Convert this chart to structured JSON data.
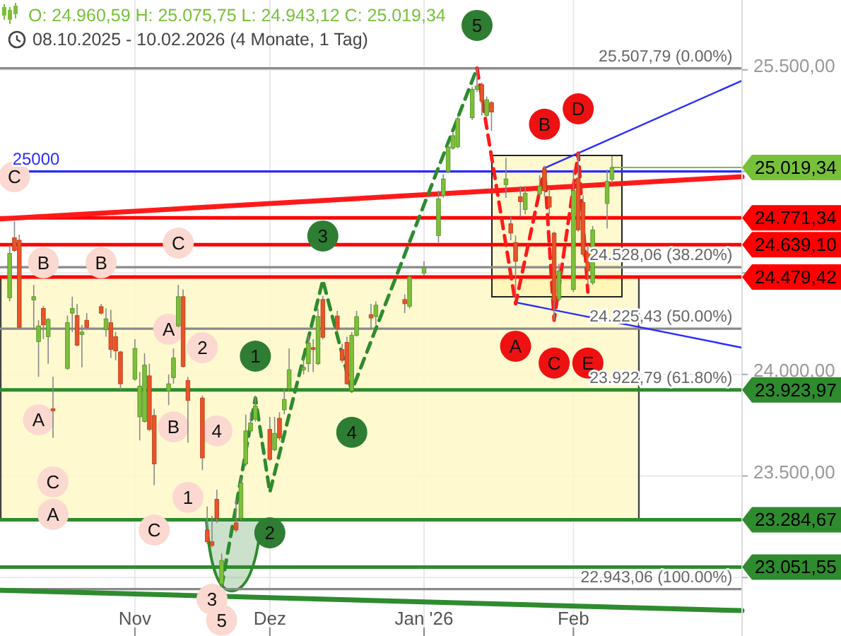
{
  "chart_data": {
    "type": "candlestick",
    "title": "O: 24.960,59  H: 25.075,75  L: 24.943,12  C: 25.019,34",
    "subtitle": "08.10.2025 - 10.02.2026  (4 Monate, 1 Tag)",
    "x": [
      "2025-10-08",
      "2025-10-09",
      "2025-10-10",
      "2025-10-13",
      "2025-10-14",
      "2025-10-15",
      "2025-10-16",
      "2025-10-17",
      "2025-10-20",
      "2025-10-21",
      "2025-10-22",
      "2025-10-23",
      "2025-10-24",
      "2025-10-27",
      "2025-10-28",
      "2025-10-29",
      "2025-10-30",
      "2025-10-31",
      "2025-11-03",
      "2025-11-04",
      "2025-11-05",
      "2025-11-06",
      "2025-11-07",
      "2025-11-10",
      "2025-11-11",
      "2025-11-12",
      "2025-11-13",
      "2025-11-14",
      "2025-11-17",
      "2025-11-18",
      "2025-11-19",
      "2025-11-20",
      "2025-11-21",
      "2025-11-24",
      "2025-11-25",
      "2025-11-26",
      "2025-11-27",
      "2025-11-28",
      "2025-12-01",
      "2025-12-02",
      "2025-12-03",
      "2025-12-04",
      "2025-12-05",
      "2025-12-08",
      "2025-12-09",
      "2025-12-10",
      "2025-12-11",
      "2025-12-12",
      "2025-12-15",
      "2025-12-16",
      "2025-12-17",
      "2025-12-18",
      "2025-12-19",
      "2025-12-22",
      "2025-12-23",
      "2025-12-29",
      "2025-12-30",
      "2026-01-02",
      "2026-01-05",
      "2026-01-06",
      "2026-01-07",
      "2026-01-08",
      "2026-01-09",
      "2026-01-12",
      "2026-01-13",
      "2026-01-14",
      "2026-01-15",
      "2026-01-16",
      "2026-01-19",
      "2026-01-20",
      "2026-01-21",
      "2026-01-22",
      "2026-01-23",
      "2026-01-26",
      "2026-01-27",
      "2026-01-28",
      "2026-01-29",
      "2026-01-30",
      "2026-02-02",
      "2026-02-03",
      "2026-02-04",
      "2026-02-05",
      "2026-02-06",
      "2026-02-09",
      "2026-02-10"
    ],
    "ohlc": [
      [
        24378,
        24638,
        24360,
        24596
      ],
      [
        24673,
        24754,
        24603,
        24610
      ],
      [
        24661,
        24689,
        24232,
        24232
      ],
      [
        24367,
        24441,
        24220,
        24383
      ],
      [
        24162,
        24267,
        23988,
        24239
      ],
      [
        24325,
        24336,
        24174,
        24244
      ],
      [
        24186,
        24278,
        24053,
        24271
      ],
      [
        23831,
        23988,
        23687,
        23821
      ],
      [
        24030,
        24290,
        24023,
        24255
      ],
      [
        24302,
        24383,
        24209,
        24325
      ],
      [
        24290,
        24348,
        24139,
        24144
      ],
      [
        24197,
        24244,
        24035,
        24209
      ],
      [
        24267,
        24302,
        24220,
        24232
      ],
      [
        24334,
        24348,
        24295,
        24302
      ],
      [
        24220,
        24325,
        24186,
        24274
      ],
      [
        24255,
        24318,
        24081,
        24123
      ],
      [
        24186,
        24209,
        24070,
        24116
      ],
      [
        24111,
        24116,
        23923,
        23954
      ],
      [
        23977,
        24174,
        23970,
        24128
      ],
      [
        23791,
        24012,
        23675,
        23942
      ],
      [
        23768,
        24104,
        23763,
        24046
      ],
      [
        23993,
        24053,
        23722,
        23729
      ],
      [
        23798,
        23831,
        23455,
        23559
      ],
      [
        23919,
        24000,
        23849,
        23954
      ],
      [
        23984,
        24128,
        23954,
        24081
      ],
      [
        24239,
        24441,
        24232,
        24383
      ],
      [
        24383,
        24418,
        24035,
        24039
      ],
      [
        23970,
        23988,
        23664,
        23872
      ],
      [
        23884,
        23896,
        23529,
        23589
      ],
      [
        23234,
        23350,
        23165,
        23176
      ],
      [
        23176,
        23304,
        23149,
        23158
      ],
      [
        23385,
        23432,
        23269,
        23292
      ],
      [
        22968,
        23118,
        22956,
        23084
      ],
      [
        23269,
        23385,
        23223,
        23234
      ],
      [
        23292,
        23490,
        23281,
        23466
      ],
      [
        23559,
        23803,
        23548,
        23722
      ],
      [
        23722,
        23814,
        23710,
        23761
      ],
      [
        23780,
        23896,
        23768,
        23845
      ],
      [
        23729,
        23791,
        23575,
        23582
      ],
      [
        23629,
        23791,
        23622,
        23710
      ],
      [
        23784,
        23814,
        23675,
        23687
      ],
      [
        23826,
        23930,
        23803,
        23877
      ],
      [
        23930,
        24128,
        23919,
        24023
      ],
      [
        24023,
        24081,
        24000,
        24035
      ],
      [
        24053,
        24193,
        24012,
        24155
      ],
      [
        24132,
        24174,
        24012,
        24123
      ],
      [
        24053,
        24325,
        24046,
        24285
      ],
      [
        24369,
        24387,
        24174,
        24183
      ],
      [
        24288,
        24313,
        24209,
        24225
      ],
      [
        24123,
        24151,
        24058,
        24070
      ],
      [
        24158,
        24186,
        23949,
        23954
      ],
      [
        23919,
        24209,
        23914,
        24193
      ],
      [
        24193,
        24313,
        24186,
        24285
      ],
      [
        24295,
        24348,
        24220,
        24278
      ],
      [
        24285,
        24360,
        24244,
        24341
      ],
      [
        24369,
        24394,
        24302,
        24348
      ],
      [
        24336,
        24487,
        24325,
        24480
      ],
      [
        24499,
        24557,
        24487,
        24527
      ],
      [
        24684,
        24905,
        24650,
        24865
      ],
      [
        24882,
        24986,
        24870,
        24963
      ],
      [
        24998,
        25130,
        24991,
        25121
      ],
      [
        25114,
        25190,
        25107,
        25176
      ],
      [
        25121,
        25276,
        25114,
        25260
      ],
      [
        25264,
        25415,
        25253,
        25404
      ],
      [
        25404,
        25508,
        25392,
        25420
      ],
      [
        25427,
        25438,
        25276,
        25346
      ],
      [
        25276,
        25369,
        25269,
        25353
      ],
      [
        25339,
        25346,
        25199,
        25292
      ],
      [
        24935,
        25067,
        24870,
        24963
      ],
      [
        24742,
        24777,
        24661,
        24696
      ],
      [
        24650,
        24684,
        24383,
        24557
      ],
      [
        24875,
        24928,
        24777,
        24851
      ],
      [
        24812,
        24928,
        24789,
        24893
      ],
      [
        24889,
        24981,
        24875,
        24928
      ],
      [
        25009,
        25028,
        24875,
        24905
      ],
      [
        24875,
        24916,
        24789,
        24824
      ],
      [
        24696,
        24703,
        24267,
        24360
      ],
      [
        24371,
        24545,
        24360,
        24510
      ],
      [
        24418,
        25009,
        24406,
        24905
      ],
      [
        24967,
        25090,
        24703,
        24712
      ],
      [
        24847,
        24882,
        24580,
        24592
      ],
      [
        24603,
        24638,
        24441,
        24510
      ],
      [
        24452,
        24731,
        24441,
        24712
      ],
      [
        24842,
        25009,
        24719,
        24951
      ],
      [
        24960.59,
        25075.75,
        24943.12,
        25019.34
      ]
    ],
    "series": [
      {
        "type": "line",
        "color": "#ff1a1a",
        "x": [
          "2025-10-06",
          "2026-03-09"
        ],
        "values": [
          24766,
          24974
        ]
      },
      {
        "type": "line",
        "color": "#2e8b2e",
        "x": [
          "2025-10-06",
          "2026-03-09"
        ],
        "values": [
          22937,
          22837
        ]
      },
      {
        "type": "line",
        "color": "#2a2aff",
        "x": [
          "2026-01-27",
          "2026-03-09"
        ],
        "values": [
          25016,
          25447
        ]
      },
      {
        "type": "line",
        "color": "#2a2aff",
        "x": [
          "2026-01-21",
          "2026-03-09"
        ],
        "values": [
          24355,
          24132
        ]
      },
      {
        "type": "line",
        "color": "#2e8b2e",
        "line_style": "dashed",
        "x": [
          "2025-11-21",
          "2025-11-28",
          "2025-12-01",
          "2025-12-12",
          "2025-12-18",
          "2026-01-13"
        ],
        "values": [
          22956,
          23884,
          23420,
          24464,
          23919,
          25508
        ]
      },
      {
        "type": "line",
        "color": "#ff1a1a",
        "line_style": "dashed",
        "x": [
          "2026-01-13",
          "2026-01-21",
          "2026-01-27",
          "2026-01-29",
          "2026-02-03",
          "2026-02-05"
        ],
        "values": [
          25508,
          24348,
          25016,
          24267,
          25090,
          24406
        ]
      },
      {
        "type": "scatter",
        "color": "#fbd9d0",
        "marker": "circle",
        "x": [
          "2025-10-09",
          "2025-10-15",
          "2025-10-27",
          "2025-11-12",
          "2025-11-10",
          "2025-11-17",
          "2025-10-14",
          "2025-11-11",
          "2025-11-20",
          "2025-10-17",
          "2025-10-17",
          "2025-11-14",
          "2025-11-07",
          "2025-11-19",
          "2025-11-21"
        ],
        "values": [
          24974,
          24550,
          24550,
          24647,
          24223,
          24132,
          23777,
          23742,
          23722,
          23471,
          23311,
          23395,
          23234,
          22893,
          22790
        ]
      },
      {
        "type": "scatter",
        "color": "#2e7d32",
        "marker": "circle",
        "x": [
          "2025-11-28",
          "2025-12-01",
          "2025-12-12",
          "2025-12-18",
          "2026-01-13"
        ],
        "values": [
          24090,
          23220,
          24682,
          23715,
          25719
        ]
      },
      {
        "type": "scatter",
        "color": "#ee1111",
        "marker": "circle",
        "x": [
          "2026-01-21",
          "2026-01-27",
          "2026-01-29",
          "2026-02-03",
          "2026-02-05"
        ],
        "values": [
          24139,
          25232,
          24056,
          25308,
          24056
        ]
      }
    ],
    "ref_lines": [
      {
        "axis": "y",
        "value": 25000,
        "color": "#2a2aff"
      },
      {
        "axis": "y",
        "value": 25507.79,
        "color": "#8a8a8a"
      },
      {
        "axis": "y",
        "value": 24528.06,
        "color": "#8a8a8a"
      },
      {
        "axis": "y",
        "value": 24225.43,
        "color": "#8a8a8a"
      },
      {
        "axis": "y",
        "value": 22943.06,
        "color": "#8a8a8a"
      },
      {
        "axis": "y",
        "value": 25019.34,
        "label": "25.019,34",
        "color": "#77c13a"
      },
      {
        "axis": "y",
        "value": 24771.34,
        "label": "24.771,34",
        "color": "#ff0000"
      },
      {
        "axis": "y",
        "value": 24639.1,
        "label": "24.639,10",
        "color": "#ff0000"
      },
      {
        "axis": "y",
        "value": 24479.42,
        "label": "24.479,42",
        "color": "#ff0000"
      },
      {
        "axis": "y",
        "value": 23923.97,
        "label": "23.923,97",
        "color": "#2e8b2e"
      },
      {
        "axis": "y",
        "value": 23284.67,
        "label": "23.284,67",
        "color": "#2e8b2e"
      },
      {
        "axis": "y",
        "value": 23051.55,
        "label": "23.051,55",
        "color": "#2e8b2e"
      }
    ],
    "annotations": [
      {
        "text": "25000",
        "x": "2025-10-08",
        "y": 25000
      },
      {
        "text": "25.507,79 (0.00%)",
        "x": "2026-03-07",
        "y": 25507.79
      },
      {
        "text": "24.528,06 (38.20%)",
        "x": "2026-03-07",
        "y": 24528.06
      },
      {
        "text": "24.225,43 (50.00%)",
        "x": "2026-03-07",
        "y": 24225.43
      },
      {
        "text": "23.922,79 (61.80%)",
        "x": "2026-03-07",
        "y": 23922.79
      },
      {
        "text": "22.943,06 (100.00%)",
        "x": "2026-03-07",
        "y": 22943.06
      },
      {
        "text": "C",
        "x": "2025-10-09",
        "y": 24974
      },
      {
        "text": "B",
        "x": "2025-10-15",
        "y": 24550
      },
      {
        "text": "B",
        "x": "2025-10-27",
        "y": 24550
      },
      {
        "text": "C",
        "x": "2025-11-12",
        "y": 24647
      },
      {
        "text": "A",
        "x": "2025-11-10",
        "y": 24223
      },
      {
        "text": "2",
        "x": "2025-11-17",
        "y": 24132
      },
      {
        "text": "A",
        "x": "2025-10-14",
        "y": 23777
      },
      {
        "text": "B",
        "x": "2025-11-11",
        "y": 23742
      },
      {
        "text": "4",
        "x": "2025-11-20",
        "y": 23722
      },
      {
        "text": "C",
        "x": "2025-10-17",
        "y": 23471
      },
      {
        "text": "A",
        "x": "2025-10-17",
        "y": 23311
      },
      {
        "text": "1",
        "x": "2025-11-14",
        "y": 23395
      },
      {
        "text": "C",
        "x": "2025-11-07",
        "y": 23234
      },
      {
        "text": "3",
        "x": "2025-11-19",
        "y": 22893
      },
      {
        "text": "5",
        "x": "2025-11-21",
        "y": 22790
      },
      {
        "text": "1",
        "x": "2025-11-28",
        "y": 24090
      },
      {
        "text": "2",
        "x": "2025-12-01",
        "y": 23220
      },
      {
        "text": "3",
        "x": "2025-12-12",
        "y": 24682
      },
      {
        "text": "4",
        "x": "2025-12-18",
        "y": 23715
      },
      {
        "text": "5",
        "x": "2026-01-13",
        "y": 25719
      },
      {
        "text": "A",
        "x": "2026-01-21",
        "y": 24139
      },
      {
        "text": "B",
        "x": "2026-01-27",
        "y": 25232
      },
      {
        "text": "C",
        "x": "2026-01-29",
        "y": 24056
      },
      {
        "text": "D",
        "x": "2026-02-03",
        "y": 25308
      },
      {
        "text": "E",
        "x": "2026-02-05",
        "y": 24056
      }
    ],
    "xlim": [
      "2025-10-06",
      "2026-03-09"
    ],
    "xticks": [
      {
        "value": "2025-11-03",
        "label": "Nov"
      },
      {
        "value": "2025-12-01",
        "label": "Dez"
      },
      {
        "value": "2026-01-02",
        "label": "Jan '26"
      },
      {
        "value": "2026-02-02",
        "label": "Feb"
      }
    ],
    "ylim": [
      22712,
      25844
    ],
    "yticks": [
      {
        "value": 23000,
        "label": null
      },
      {
        "value": 23500,
        "label": "23.500,00"
      },
      {
        "value": 24000,
        "label": "24.000,00"
      },
      {
        "value": 24500,
        "label": null
      },
      {
        "value": 25000,
        "label": null
      },
      {
        "value": 25500,
        "label": "25.500,00"
      }
    ],
    "grid": true
  }
}
